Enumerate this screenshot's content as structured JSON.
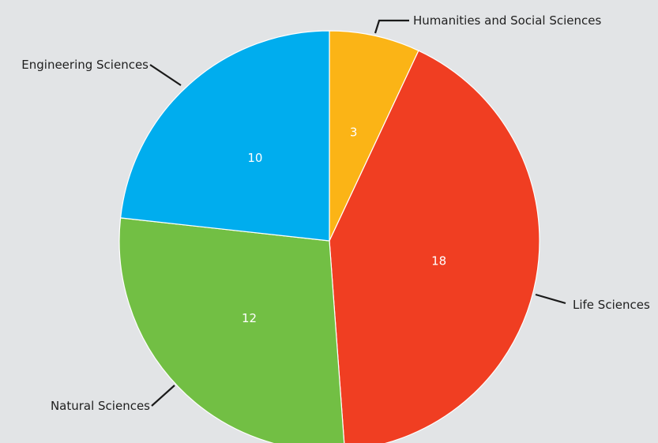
{
  "chart_data": {
    "type": "pie",
    "title": "",
    "start_angle_deg": 0,
    "direction": "clockwise",
    "legend": "none",
    "slices": [
      {
        "label": "Humanities and Social Sciences",
        "value": 3,
        "color": "#fbb416"
      },
      {
        "label": "Life Sciences",
        "value": 18,
        "color": "#f03e22"
      },
      {
        "label": "Natural Sciences",
        "value": 12,
        "color": "#72bf44"
      },
      {
        "label": "Engineering Sciences",
        "value": 10,
        "color": "#00adee"
      }
    ]
  }
}
